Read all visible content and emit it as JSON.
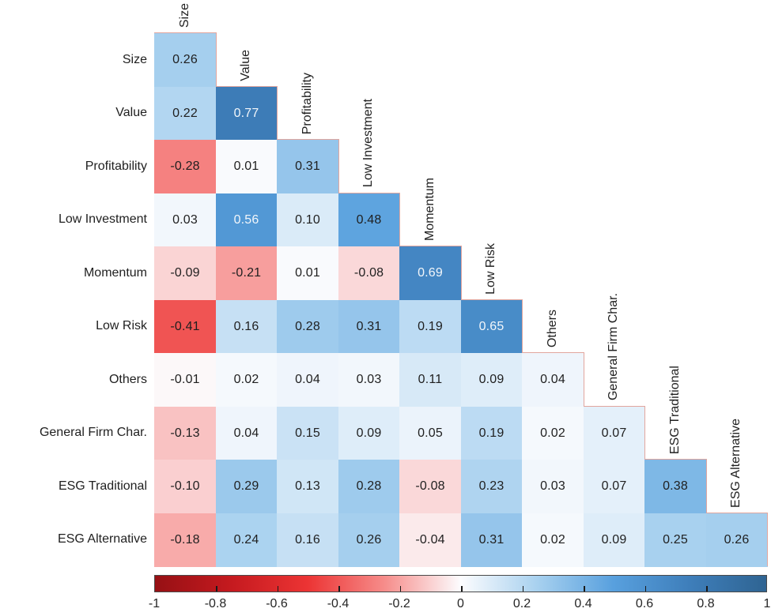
{
  "chart_data": {
    "type": "heatmap",
    "variant": "lower-triangular-correlation-matrix",
    "title": "",
    "labels": [
      "Size",
      "Value",
      "Profitability",
      "Low Investment",
      "Momentum",
      "Low Risk",
      "Others",
      "General Firm Char.",
      "ESG Traditional",
      "ESG Alternative"
    ],
    "matrix": [
      [
        0.26
      ],
      [
        0.22,
        0.77
      ],
      [
        -0.28,
        0.01,
        0.31
      ],
      [
        0.03,
        0.56,
        0.1,
        0.48
      ],
      [
        -0.09,
        -0.21,
        0.01,
        -0.08,
        0.69
      ],
      [
        -0.41,
        0.16,
        0.28,
        0.31,
        0.19,
        0.65
      ],
      [
        -0.01,
        0.02,
        0.04,
        0.03,
        0.11,
        0.09,
        0.04
      ],
      [
        -0.13,
        0.04,
        0.15,
        0.09,
        0.05,
        0.19,
        0.02,
        0.07
      ],
      [
        -0.1,
        0.29,
        0.13,
        0.28,
        -0.08,
        0.23,
        0.03,
        0.07,
        0.38
      ],
      [
        -0.18,
        0.24,
        0.16,
        0.26,
        -0.04,
        0.31,
        0.02,
        0.09,
        0.25,
        0.26
      ]
    ],
    "value_decimals": 2,
    "colorbar": {
      "min": -1,
      "max": 1,
      "tick_values": [
        -1,
        -0.8,
        -0.6,
        -0.4,
        -0.2,
        0,
        0.2,
        0.4,
        0.6,
        0.8,
        1
      ],
      "tick_labels": [
        "-1",
        "-0.8",
        "-0.6",
        "-0.4",
        "-0.2",
        "0",
        "0.2",
        "0.4",
        "0.6",
        "0.8",
        "1"
      ],
      "orientation": "horizontal",
      "position": "bottom"
    },
    "colormap_stops": [
      {
        "v": -1.0,
        "color": "#961014"
      },
      {
        "v": -0.75,
        "color": "#c51a1f"
      },
      {
        "v": -0.5,
        "color": "#ec3434"
      },
      {
        "v": -0.25,
        "color": "#f68c8a"
      },
      {
        "v": 0.0,
        "color": "#fcfcfe"
      },
      {
        "v": 0.25,
        "color": "#a8d1ef"
      },
      {
        "v": 0.5,
        "color": "#58a0de"
      },
      {
        "v": 0.75,
        "color": "#3e7eba"
      },
      {
        "v": 1.0,
        "color": "#2f6492"
      }
    ],
    "colors": {
      "background": "#ffffff",
      "cell_text_dark": "#1f1f1f",
      "cell_text_light": "#f2f6fa",
      "white_text_abs_threshold": 0.5,
      "step_outline": "#e2a69e",
      "axis_label_text": "#1f1f1f",
      "colorbar_tick": "#1a1a1a",
      "colorbar_border": "#4a4a4a",
      "colorbar_label_text": "#262626"
    },
    "legend": "none",
    "grid": "off"
  }
}
